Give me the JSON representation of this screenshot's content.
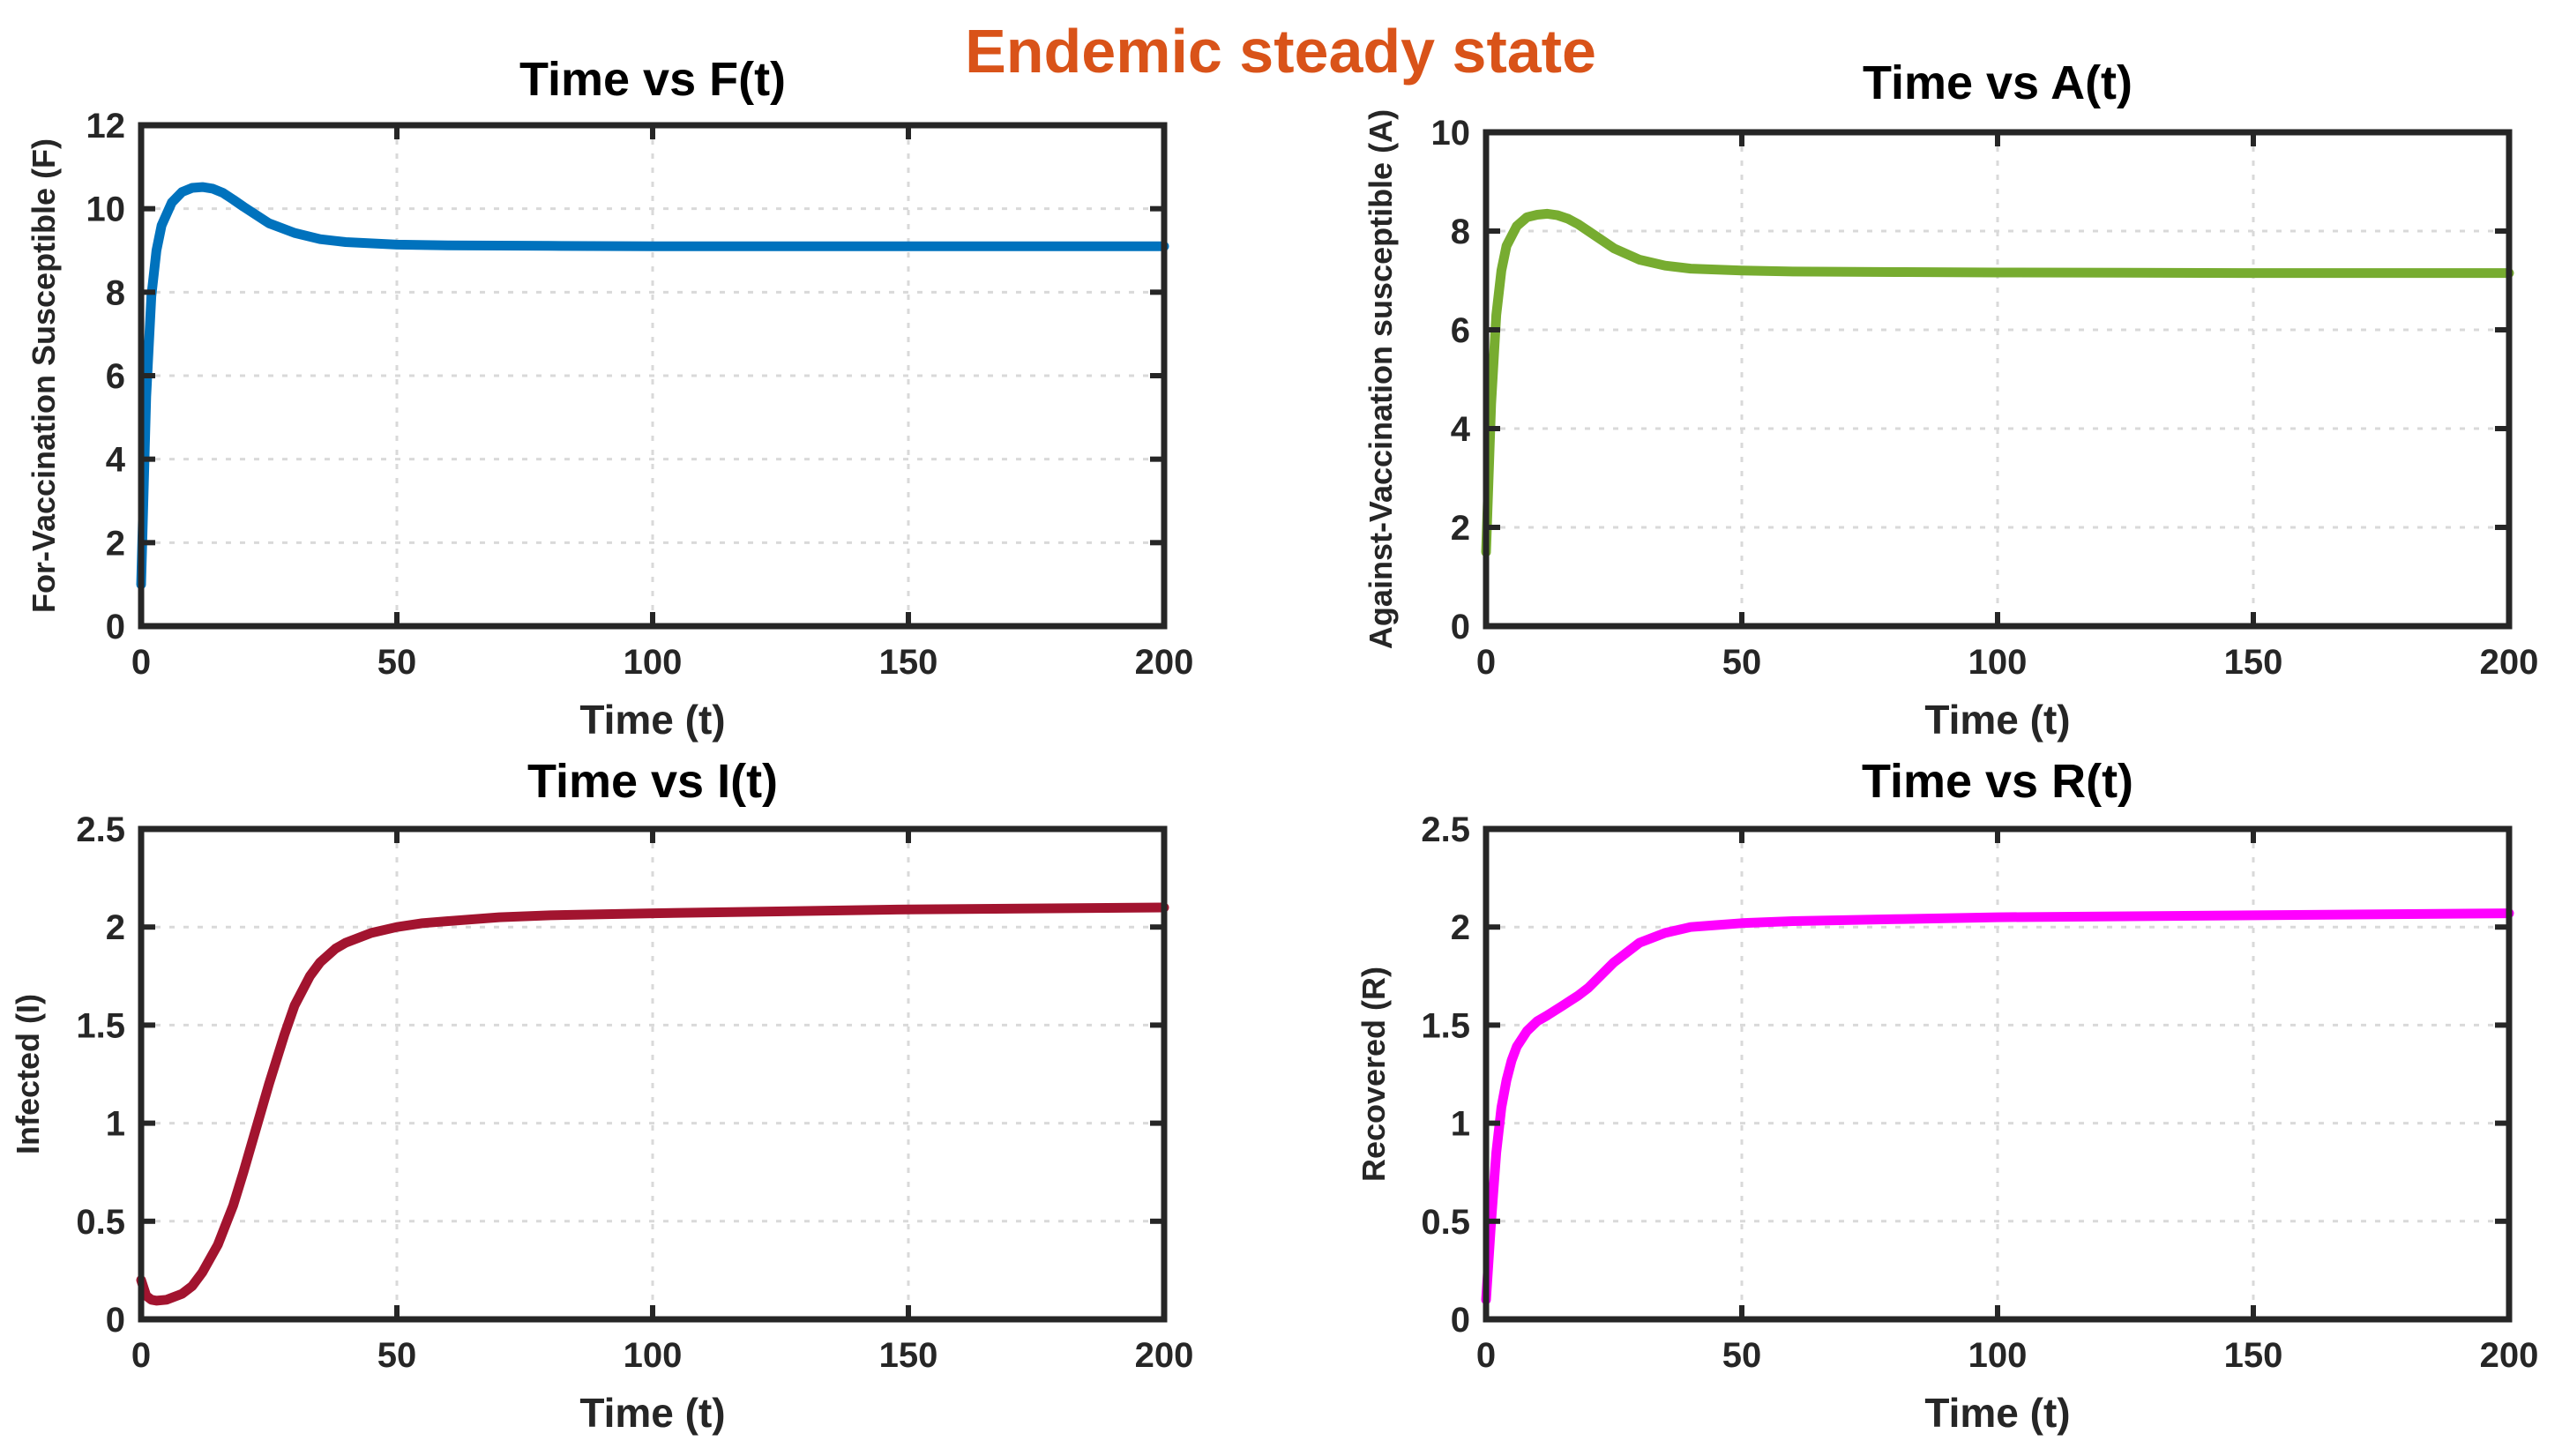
{
  "figure": {
    "suptitle": "Endemic steady state",
    "suptitle_color": "#D95319"
  },
  "chart_data": [
    {
      "type": "line",
      "title": "Time vs F(t)",
      "xlabel": "Time (t)",
      "ylabel": "For-Vaccination Susceptible (F)",
      "xlim": [
        0,
        200
      ],
      "ylim": [
        0,
        12
      ],
      "xticks": [
        0,
        50,
        100,
        150,
        200
      ],
      "yticks": [
        0,
        2,
        4,
        6,
        8,
        10,
        12
      ],
      "grid": true,
      "color": "#0072BD",
      "series": [
        {
          "name": "F(t)",
          "x": [
            0,
            1,
            2,
            3,
            4,
            6,
            8,
            10,
            12,
            14,
            16,
            18,
            20,
            25,
            30,
            35,
            40,
            50,
            60,
            80,
            100,
            150,
            200
          ],
          "y": [
            1.0,
            5.5,
            7.9,
            9.0,
            9.6,
            10.15,
            10.4,
            10.5,
            10.52,
            10.48,
            10.38,
            10.22,
            10.05,
            9.65,
            9.42,
            9.27,
            9.2,
            9.14,
            9.12,
            9.11,
            9.1,
            9.1,
            9.1
          ]
        }
      ]
    },
    {
      "type": "line",
      "title": "Time vs A(t)",
      "xlabel": "Time (t)",
      "ylabel": "Against-Vaccination susceptible (A)",
      "xlim": [
        0,
        200
      ],
      "ylim": [
        0,
        10
      ],
      "xticks": [
        0,
        50,
        100,
        150,
        200
      ],
      "yticks": [
        0,
        2,
        4,
        6,
        8,
        10
      ],
      "grid": true,
      "color": "#77AC30",
      "series": [
        {
          "name": "A(t)",
          "x": [
            0,
            1,
            2,
            3,
            4,
            6,
            8,
            10,
            12,
            14,
            16,
            18,
            20,
            25,
            30,
            35,
            40,
            50,
            60,
            80,
            100,
            150,
            200
          ],
          "y": [
            1.5,
            4.5,
            6.3,
            7.2,
            7.7,
            8.1,
            8.28,
            8.33,
            8.35,
            8.32,
            8.25,
            8.14,
            8.0,
            7.65,
            7.42,
            7.3,
            7.24,
            7.2,
            7.18,
            7.17,
            7.16,
            7.15,
            7.15
          ]
        }
      ]
    },
    {
      "type": "line",
      "title": "Time vs I(t)",
      "xlabel": "Time (t)",
      "ylabel": "Infected (I)",
      "xlim": [
        0,
        200
      ],
      "ylim": [
        0,
        2.5
      ],
      "xticks": [
        0,
        50,
        100,
        150,
        200
      ],
      "yticks": [
        0,
        0.5,
        1,
        1.5,
        2,
        2.5
      ],
      "grid": true,
      "color": "#A2142F",
      "series": [
        {
          "name": "I(t)",
          "x": [
            0,
            1,
            2,
            3,
            5,
            8,
            10,
            12,
            15,
            18,
            20,
            22,
            25,
            28,
            30,
            33,
            35,
            38,
            40,
            45,
            50,
            55,
            60,
            70,
            80,
            100,
            150,
            200
          ],
          "y": [
            0.2,
            0.12,
            0.1,
            0.095,
            0.1,
            0.13,
            0.17,
            0.24,
            0.38,
            0.58,
            0.75,
            0.93,
            1.2,
            1.45,
            1.6,
            1.75,
            1.82,
            1.89,
            1.92,
            1.97,
            2.0,
            2.02,
            2.03,
            2.05,
            2.06,
            2.07,
            2.09,
            2.1
          ]
        }
      ]
    },
    {
      "type": "line",
      "title": "Time vs R(t)",
      "xlabel": "Time (t)",
      "ylabel": "Recovered (R)",
      "xlim": [
        0,
        200
      ],
      "ylim": [
        0,
        2.5
      ],
      "xticks": [
        0,
        50,
        100,
        150,
        200
      ],
      "yticks": [
        0,
        0.5,
        1,
        1.5,
        2,
        2.5
      ],
      "grid": true,
      "color": "#FF00FF",
      "series": [
        {
          "name": "R(t)",
          "x": [
            0,
            1,
            2,
            3,
            4,
            5,
            6,
            8,
            10,
            12,
            15,
            18,
            20,
            25,
            30,
            35,
            40,
            45,
            50,
            60,
            80,
            100,
            150,
            200
          ],
          "y": [
            0.1,
            0.5,
            0.85,
            1.08,
            1.22,
            1.32,
            1.39,
            1.47,
            1.52,
            1.55,
            1.6,
            1.65,
            1.69,
            1.82,
            1.92,
            1.97,
            2.0,
            2.01,
            2.02,
            2.03,
            2.04,
            2.05,
            2.06,
            2.07
          ]
        }
      ]
    }
  ]
}
